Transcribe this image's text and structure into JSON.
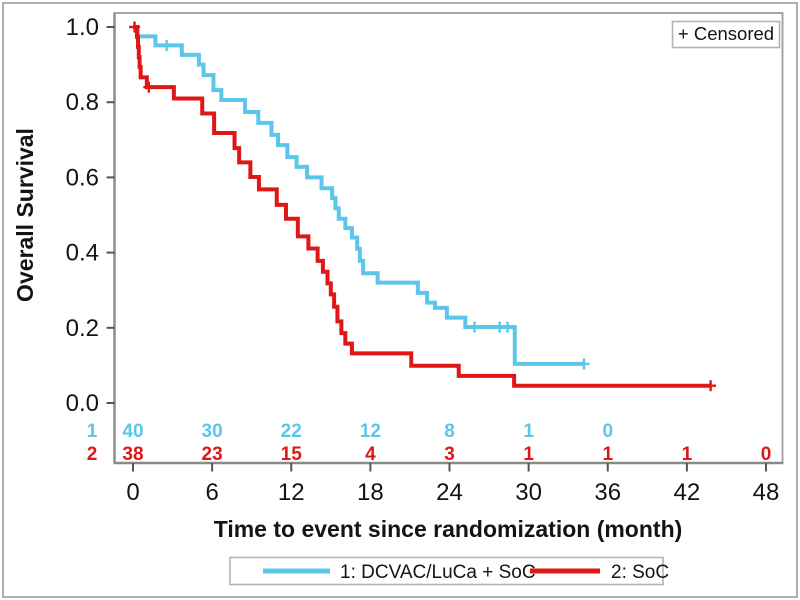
{
  "chart_data": {
    "type": "line",
    "subtype": "kaplan-meier-step-curves",
    "title": "",
    "xlabel": "Time to event since randomization (month)",
    "ylabel": "Overall Survival",
    "xlim": [
      0,
      48
    ],
    "ylim": [
      0.0,
      1.0
    ],
    "x_ticks": [
      0,
      6,
      12,
      18,
      24,
      30,
      36,
      42,
      48
    ],
    "y_ticks": [
      {
        "label": "1.0",
        "value": 1.0
      },
      {
        "label": "0.8",
        "value": 0.8
      },
      {
        "label": "0.6",
        "value": 0.6
      },
      {
        "label": "0.4",
        "value": 0.4
      },
      {
        "label": "0.2",
        "value": 0.2
      },
      {
        "label": "0.0",
        "value": 0.0
      }
    ],
    "grid": "off",
    "legend_position": "bottom",
    "censored_box_label": "+ Censored",
    "colors": {
      "group1": "#5CC6EA",
      "group2": "#DF1717",
      "text": "#141414",
      "frame": "#9a9a9a",
      "tick": "#555555",
      "box_border": "#b3b3b3"
    },
    "series": [
      {
        "name": "1: DCVAC/LuCa + SoC",
        "group": "1",
        "color": "#5CC6EA",
        "steps": [
          [
            0,
            1.0
          ],
          [
            0.35,
            0.975
          ],
          [
            1.7,
            0.951
          ],
          [
            3.7,
            0.926
          ],
          [
            5.0,
            0.9
          ],
          [
            5.35,
            0.872
          ],
          [
            6.1,
            0.832
          ],
          [
            6.7,
            0.806
          ],
          [
            8.5,
            0.774
          ],
          [
            9.5,
            0.745
          ],
          [
            10.5,
            0.713
          ],
          [
            11.0,
            0.686
          ],
          [
            11.7,
            0.654
          ],
          [
            12.4,
            0.628
          ],
          [
            13.2,
            0.6
          ],
          [
            14.3,
            0.571
          ],
          [
            15.1,
            0.545
          ],
          [
            15.35,
            0.518
          ],
          [
            15.6,
            0.49
          ],
          [
            16.1,
            0.465
          ],
          [
            16.6,
            0.44
          ],
          [
            17.0,
            0.41
          ],
          [
            17.2,
            0.378
          ],
          [
            17.45,
            0.345
          ],
          [
            18.55,
            0.32
          ],
          [
            21.6,
            0.293
          ],
          [
            22.3,
            0.267
          ],
          [
            22.9,
            0.253
          ],
          [
            23.8,
            0.227
          ],
          [
            25.2,
            0.202
          ],
          [
            28.95,
            0.104
          ]
        ],
        "curve_end": [
          34.2,
          0.104
        ],
        "censor_marks": [
          [
            2.55,
            0.951
          ],
          [
            25.9,
            0.202
          ],
          [
            27.8,
            0.202
          ],
          [
            28.4,
            0.202
          ],
          [
            34.2,
            0.104
          ]
        ]
      },
      {
        "name": "2: SoC",
        "group": "2",
        "color": "#DF1717",
        "steps": [
          [
            0,
            1.0
          ],
          [
            0.3,
            0.974
          ],
          [
            0.38,
            0.947
          ],
          [
            0.44,
            0.92
          ],
          [
            0.5,
            0.894
          ],
          [
            0.58,
            0.866
          ],
          [
            1.05,
            0.84
          ],
          [
            3.1,
            0.81
          ],
          [
            5.25,
            0.77
          ],
          [
            6.15,
            0.718
          ],
          [
            7.7,
            0.678
          ],
          [
            8.05,
            0.64
          ],
          [
            8.9,
            0.601
          ],
          [
            9.55,
            0.568
          ],
          [
            10.9,
            0.527
          ],
          [
            11.6,
            0.49
          ],
          [
            12.5,
            0.443
          ],
          [
            13.3,
            0.411
          ],
          [
            14.0,
            0.378
          ],
          [
            14.4,
            0.349
          ],
          [
            14.75,
            0.318
          ],
          [
            15.0,
            0.289
          ],
          [
            15.25,
            0.256
          ],
          [
            15.5,
            0.217
          ],
          [
            15.8,
            0.186
          ],
          [
            16.1,
            0.158
          ],
          [
            16.6,
            0.132
          ],
          [
            21.1,
            0.099
          ],
          [
            24.7,
            0.072
          ],
          [
            28.9,
            0.046
          ]
        ],
        "curve_end": [
          43.8,
          0.046
        ],
        "censor_marks": [
          [
            0.12,
            1.0
          ],
          [
            1.2,
            0.84
          ],
          [
            43.8,
            0.046
          ]
        ]
      }
    ],
    "at_risk_table": {
      "rows": [
        {
          "group_label": "1",
          "color": "#5CC6EA",
          "times": [
            0,
            6,
            12,
            18,
            24,
            30,
            36
          ],
          "counts": [
            "40",
            "30",
            "22",
            "12",
            "8",
            "1",
            "0"
          ]
        },
        {
          "group_label": "2",
          "color": "#DF1717",
          "times": [
            0,
            6,
            12,
            18,
            24,
            30,
            36,
            42,
            48
          ],
          "counts": [
            "38",
            "23",
            "15",
            "4",
            "3",
            "1",
            "1",
            "1",
            "0"
          ]
        }
      ]
    }
  }
}
